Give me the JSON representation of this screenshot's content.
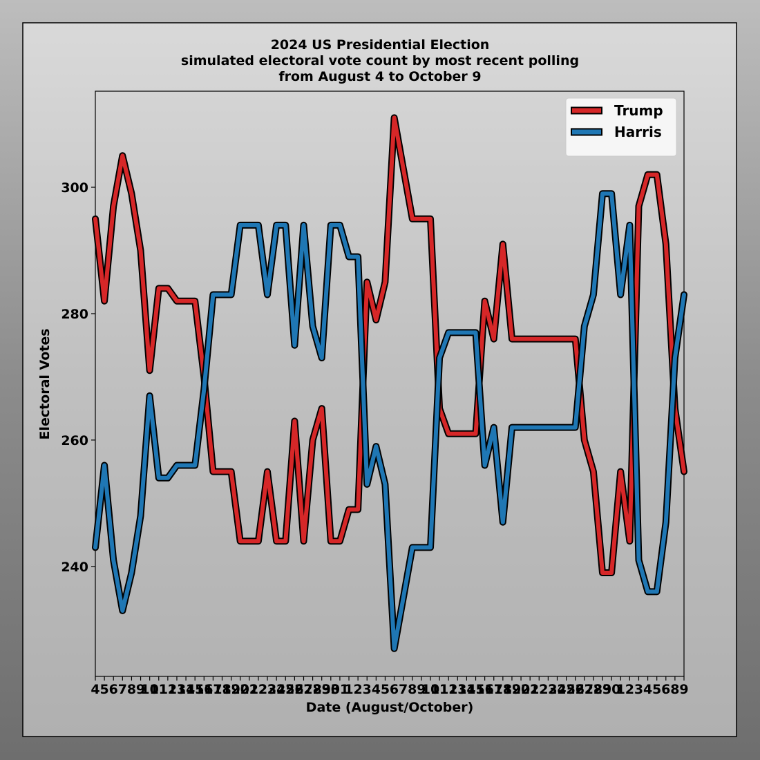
{
  "chart_data": {
    "type": "line",
    "title": "2024 US Presidential Election",
    "subtitle": [
      "simulated electoral vote count by most recent polling",
      "from August 4 to October 9"
    ],
    "xlabel": "Date (August/October)",
    "ylabel": "Electoral Votes",
    "categories": [
      "4",
      "5",
      "6",
      "7",
      "8",
      "9",
      "10",
      "11",
      "12",
      "13",
      "14",
      "15",
      "16",
      "17",
      "18",
      "19",
      "20",
      "21",
      "22",
      "23",
      "24",
      "25",
      "26",
      "27",
      "28",
      "29",
      "30",
      "31",
      "1",
      "2",
      "3",
      "4",
      "5",
      "6",
      "7",
      "8",
      "9",
      "10",
      "11",
      "12",
      "13",
      "14",
      "15",
      "16",
      "17",
      "18",
      "19",
      "20",
      "21",
      "22",
      "23",
      "24",
      "25",
      "26",
      "27",
      "28",
      "29",
      "30",
      "1",
      "2",
      "3",
      "4",
      "5",
      "6",
      "8",
      "9"
    ],
    "series": [
      {
        "name": "Trump",
        "color": "#d62728",
        "values": [
          295,
          282,
          297,
          305,
          299,
          290,
          271,
          284,
          284,
          282,
          282,
          282,
          270,
          255,
          255,
          255,
          244,
          244,
          244,
          255,
          244,
          244,
          263,
          244,
          260,
          265,
          244,
          244,
          249,
          249,
          285,
          279,
          285,
          311,
          303,
          295,
          295,
          295,
          265,
          261,
          261,
          261,
          261,
          282,
          276,
          291,
          276,
          276,
          276,
          276,
          276,
          276,
          276,
          276,
          260,
          255,
          239,
          239,
          255,
          244,
          297,
          302,
          302,
          291,
          265,
          255
        ]
      },
      {
        "name": "Harris",
        "color": "#1f77b4",
        "values": [
          243,
          256,
          241,
          233,
          239,
          248,
          267,
          254,
          254,
          256,
          256,
          256,
          268,
          283,
          283,
          283,
          294,
          294,
          294,
          283,
          294,
          294,
          275,
          294,
          278,
          273,
          294,
          294,
          289,
          289,
          253,
          259,
          253,
          227,
          235,
          243,
          243,
          243,
          273,
          277,
          277,
          277,
          277,
          256,
          262,
          247,
          262,
          262,
          262,
          262,
          262,
          262,
          262,
          262,
          278,
          283,
          299,
          299,
          283,
          294,
          241,
          236,
          236,
          247,
          273,
          283
        ]
      }
    ],
    "ylim": [
      222.6,
      315.2
    ],
    "yticks": [
      240,
      260,
      280,
      300
    ],
    "legend": "upper right",
    "grid": false
  }
}
